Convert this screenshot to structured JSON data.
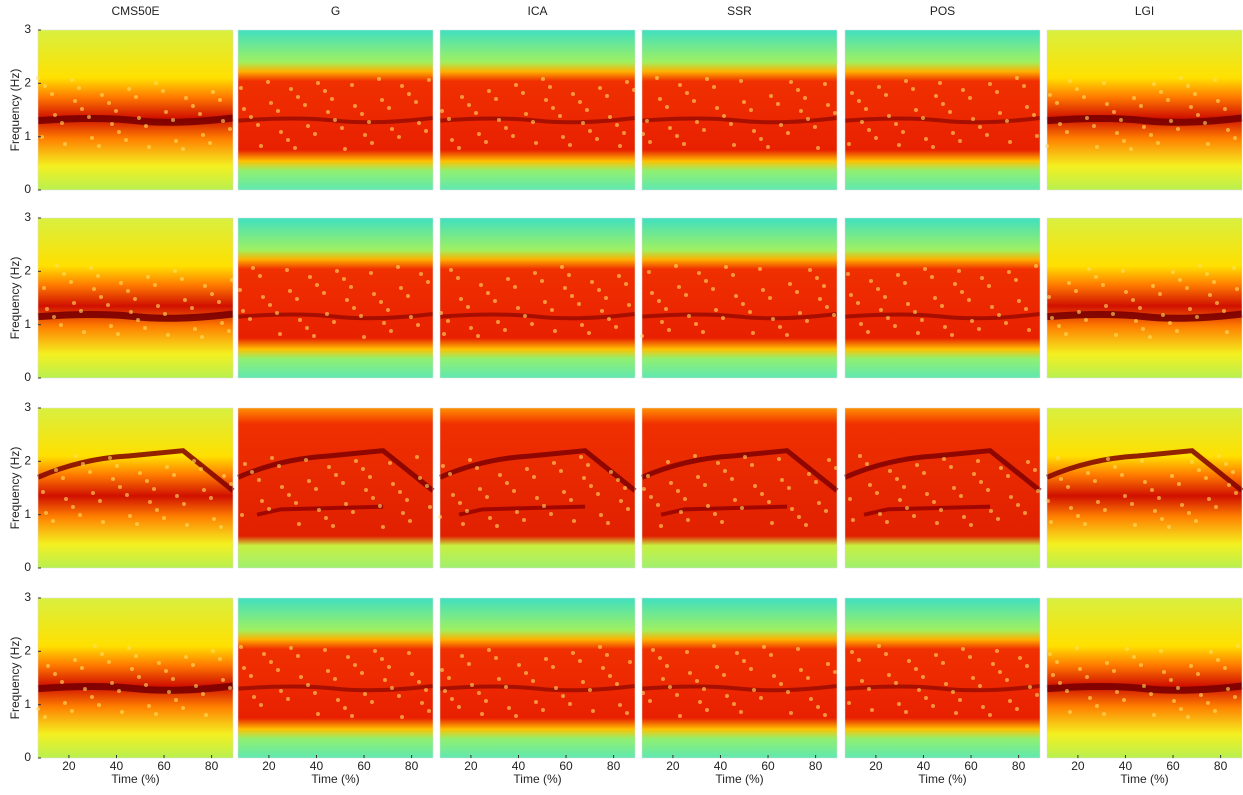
{
  "figure": {
    "columns": [
      "CMS50E",
      "G",
      "ICA",
      "SSR",
      "POS",
      "LGI"
    ],
    "ylabel": "Frequency (Hz)",
    "xlabel": "Time (%)",
    "ylim": [
      0,
      3
    ],
    "yticks": [
      0,
      1,
      2,
      3
    ],
    "xlim": [
      7,
      89
    ],
    "xticks": [
      20,
      40,
      60,
      80
    ]
  }
}
